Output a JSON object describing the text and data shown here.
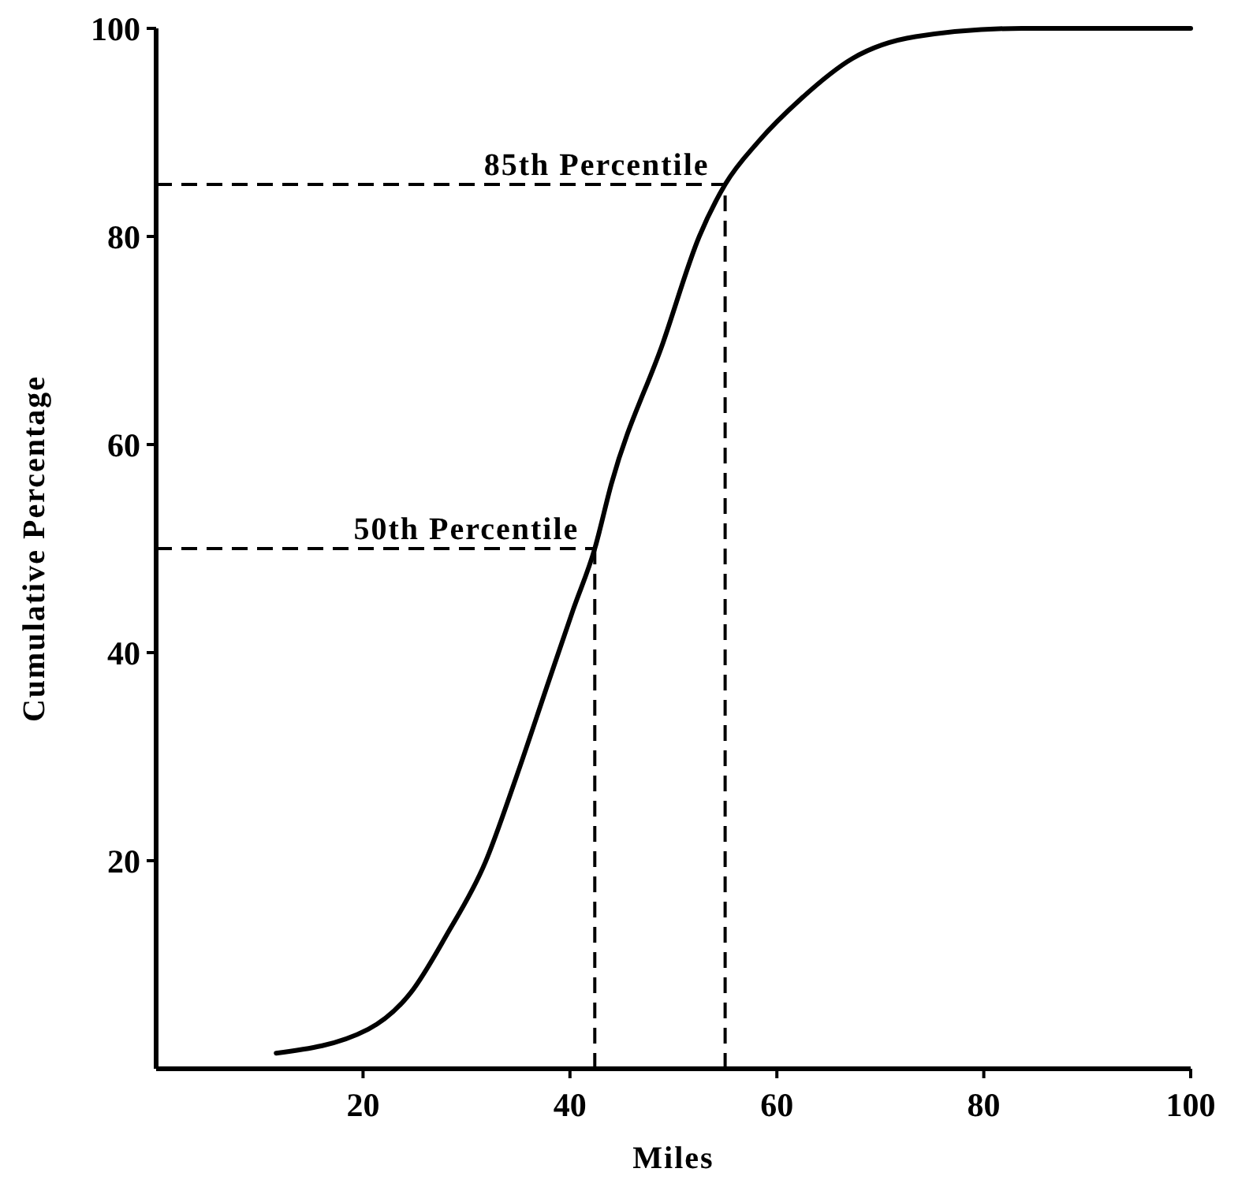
{
  "chart_data": {
    "type": "line",
    "xlabel": "Miles",
    "ylabel": "Cumulative Percentage",
    "x": [
      11.6,
      20.5,
      24.6,
      28.1,
      31.8,
      34.8,
      37.9,
      40.3,
      42.4,
      44,
      49,
      52.5,
      55,
      58.2,
      62.3,
      67.3,
      73.4,
      83.7,
      100
    ],
    "series": [
      {
        "color": "#000000",
        "values": [
          1.5,
          3.8,
          7.3,
          12.9,
          19.8,
          28,
          37.1,
          44.1,
          50,
          56.2,
          69.8,
          80,
          85,
          89.1,
          93.2,
          97.1,
          99.2,
          100,
          100
        ]
      }
    ],
    "xlim": [
      0,
      100
    ],
    "ylim": [
      0,
      100
    ],
    "xticks": [
      20,
      40,
      60,
      80,
      100
    ],
    "yticks": [
      20,
      40,
      60,
      80,
      100
    ],
    "grid": false,
    "marker": "none",
    "line_style": "solid",
    "ref_lines": [
      {
        "axis": "y",
        "value": 50,
        "label": "50th Percentile",
        "line_style": "dashed"
      },
      {
        "axis": "x",
        "value": 42.4,
        "line_style": "dashed"
      },
      {
        "axis": "y",
        "value": 85,
        "label": "85th Percentile",
        "line_style": "dashed"
      },
      {
        "axis": "x",
        "value": 55,
        "line_style": "dashed"
      }
    ]
  }
}
